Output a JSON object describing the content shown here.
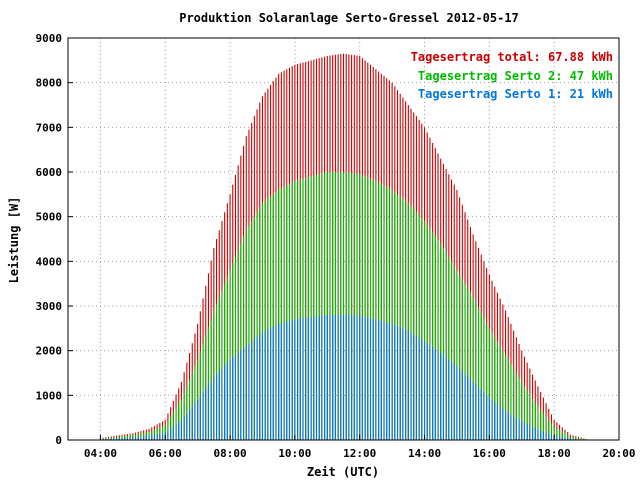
{
  "chart_data": {
    "type": "bar",
    "title": "Produktion Solaranlage Serto-Gressel 2012-05-17",
    "xlabel": "Zeit (UTC)",
    "ylabel": "Leistung [W]",
    "xlim": [
      3.0,
      20.0
    ],
    "ylim": [
      0,
      9000
    ],
    "x_ticks": [
      "04:00",
      "06:00",
      "08:00",
      "10:00",
      "12:00",
      "14:00",
      "16:00",
      "18:00",
      "20:00"
    ],
    "y_ticks": [
      "0",
      "1000",
      "2000",
      "3000",
      "4000",
      "5000",
      "6000",
      "7000",
      "8000",
      "9000"
    ],
    "grid": true,
    "legend_position": "top-right",
    "colors": {
      "total": "#cc0000",
      "serto2": "#00bb00",
      "serto1": "#0077dd"
    },
    "x_unit": "hours UTC",
    "x": [
      4.0,
      4.5,
      5.0,
      5.5,
      6.0,
      6.5,
      7.0,
      7.5,
      8.0,
      8.5,
      9.0,
      9.5,
      10.0,
      10.5,
      11.0,
      11.5,
      12.0,
      12.5,
      13.0,
      13.5,
      14.0,
      14.5,
      15.0,
      15.5,
      16.0,
      16.5,
      17.0,
      17.5,
      18.0,
      18.5,
      19.0
    ],
    "series": [
      {
        "name": "Tagesertrag total: 67.88 kWh",
        "key": "total",
        "values": [
          40,
          100,
          150,
          250,
          450,
          1300,
          2600,
          4300,
          5500,
          6800,
          7700,
          8200,
          8400,
          8500,
          8600,
          8650,
          8600,
          8300,
          8000,
          7500,
          7000,
          6300,
          5600,
          4600,
          3700,
          2900,
          2000,
          1200,
          450,
          120,
          20
        ]
      },
      {
        "name": "Tagesertrag Serto 2: 47 kWh",
        "key": "serto2",
        "values": [
          30,
          70,
          110,
          180,
          330,
          900,
          1800,
          2900,
          3800,
          4700,
          5300,
          5600,
          5800,
          5900,
          6000,
          6000,
          5950,
          5800,
          5600,
          5300,
          4900,
          4400,
          3800,
          3200,
          2500,
          1900,
          1300,
          750,
          300,
          80,
          15
        ]
      },
      {
        "name": "Tagesertrag Serto 1: 21 kWh",
        "key": "serto1",
        "values": [
          15,
          35,
          55,
          90,
          160,
          450,
          900,
          1400,
          1800,
          2100,
          2400,
          2600,
          2700,
          2750,
          2800,
          2800,
          2780,
          2700,
          2600,
          2450,
          2200,
          1950,
          1650,
          1300,
          950,
          650,
          420,
          230,
          100,
          30,
          5
        ]
      }
    ]
  }
}
